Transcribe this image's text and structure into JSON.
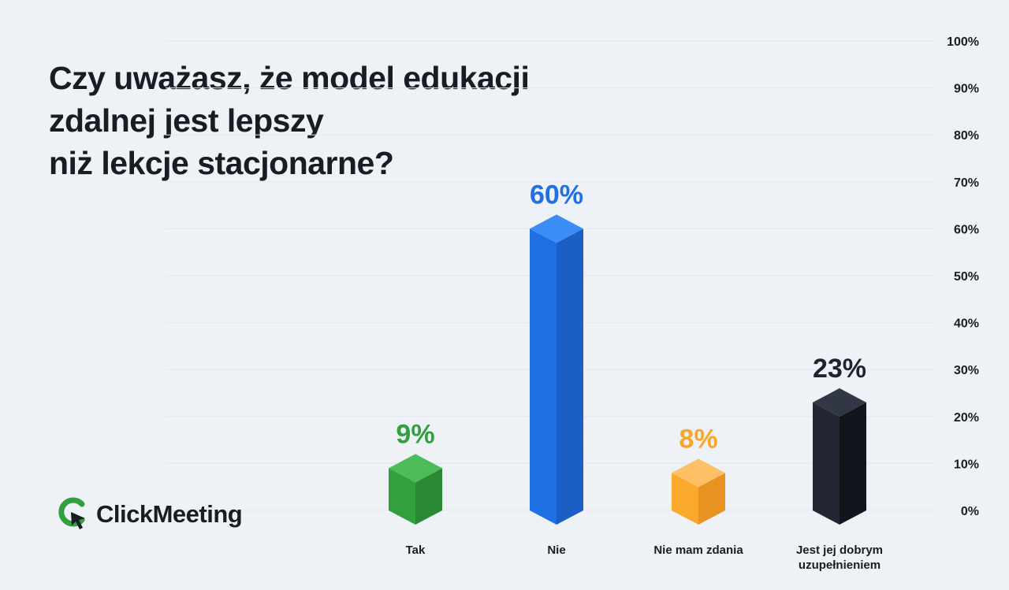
{
  "title_lines": [
    "Czy uważasz, że model edukacji",
    "zdalnej jest lepszy",
    "niż lekcje stacjonarne?"
  ],
  "brand": {
    "name": "ClickMeeting",
    "icon": "clickmeeting-logo-icon"
  },
  "chart_data": {
    "type": "bar",
    "title": "Czy uważasz, że model edukacji zdalnej jest lepszy niż lekcje stacjonarne?",
    "categories": [
      "Tak",
      "Nie",
      "Nie mam zdania",
      "Jest jej dobrym uzupełnieniem"
    ],
    "category_lines": [
      [
        "Tak"
      ],
      [
        "Nie"
      ],
      [
        "Nie mam zdania"
      ],
      [
        "Jest jej dobrym",
        "uzupełnieniem"
      ]
    ],
    "values": [
      9,
      60,
      8,
      23
    ],
    "value_labels": [
      "9%",
      "60%",
      "8%",
      "23%"
    ],
    "colors": [
      {
        "front": "#31a03d",
        "side": "#2a8a34",
        "top": "#4cbc58",
        "label": "#31a03d"
      },
      {
        "front": "#1f6fe5",
        "side": "#1b5fc4",
        "top": "#3b8cf5",
        "label": "#1f6fe5"
      },
      {
        "front": "#fba92b",
        "side": "#e89222",
        "top": "#fdc067",
        "label": "#f8a52a"
      },
      {
        "front": "#232733",
        "side": "#12151c",
        "top": "#323746",
        "label": "#1f2330"
      }
    ],
    "y_ticks": [
      "0%",
      "10%",
      "20%",
      "30%",
      "40%",
      "50%",
      "60%",
      "70%",
      "80%",
      "90%",
      "100%"
    ],
    "ylim": [
      0,
      100
    ],
    "ylabel": "",
    "xlabel": "",
    "y_axis_side": "right",
    "grid": true,
    "style": "3d-columns"
  }
}
